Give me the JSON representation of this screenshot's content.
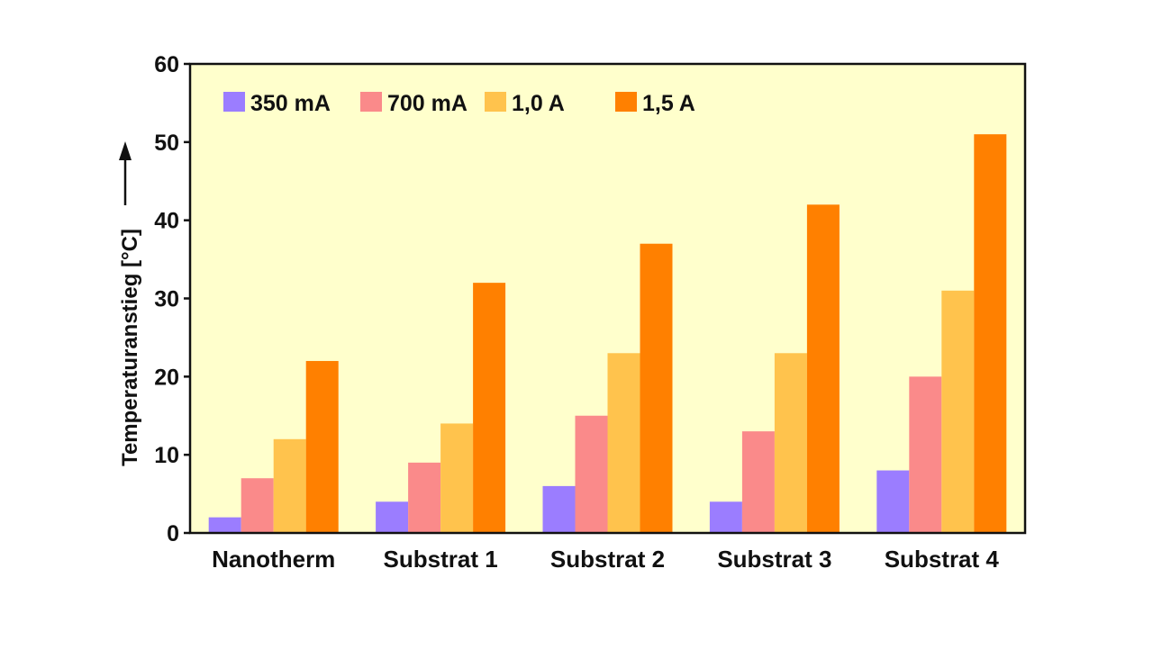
{
  "chart_data": {
    "type": "bar",
    "title": "",
    "xlabel": "",
    "ylabel": "Temperaturanstieg [°C]",
    "ylim": [
      0,
      60
    ],
    "yticks": [
      0,
      10,
      20,
      30,
      40,
      50,
      60
    ],
    "grid": false,
    "legend_position": "top-left",
    "background_color": "#ffffcc",
    "categories": [
      "Nanotherm",
      "Substrat 1",
      "Substrat 2",
      "Substrat 3",
      "Substrat 4"
    ],
    "series": [
      {
        "name": "350 mA",
        "color": "#9b7dff",
        "values": [
          2,
          4,
          6,
          4,
          8
        ]
      },
      {
        "name": "700 mA",
        "color": "#fa8a8a",
        "values": [
          7,
          9,
          15,
          13,
          20
        ]
      },
      {
        "name": "1,0 A",
        "color": "#ffc34d",
        "values": [
          12,
          14,
          23,
          23,
          31
        ]
      },
      {
        "name": "1,5 A",
        "color": "#ff8000",
        "values": [
          22,
          32,
          37,
          42,
          51
        ]
      }
    ]
  }
}
